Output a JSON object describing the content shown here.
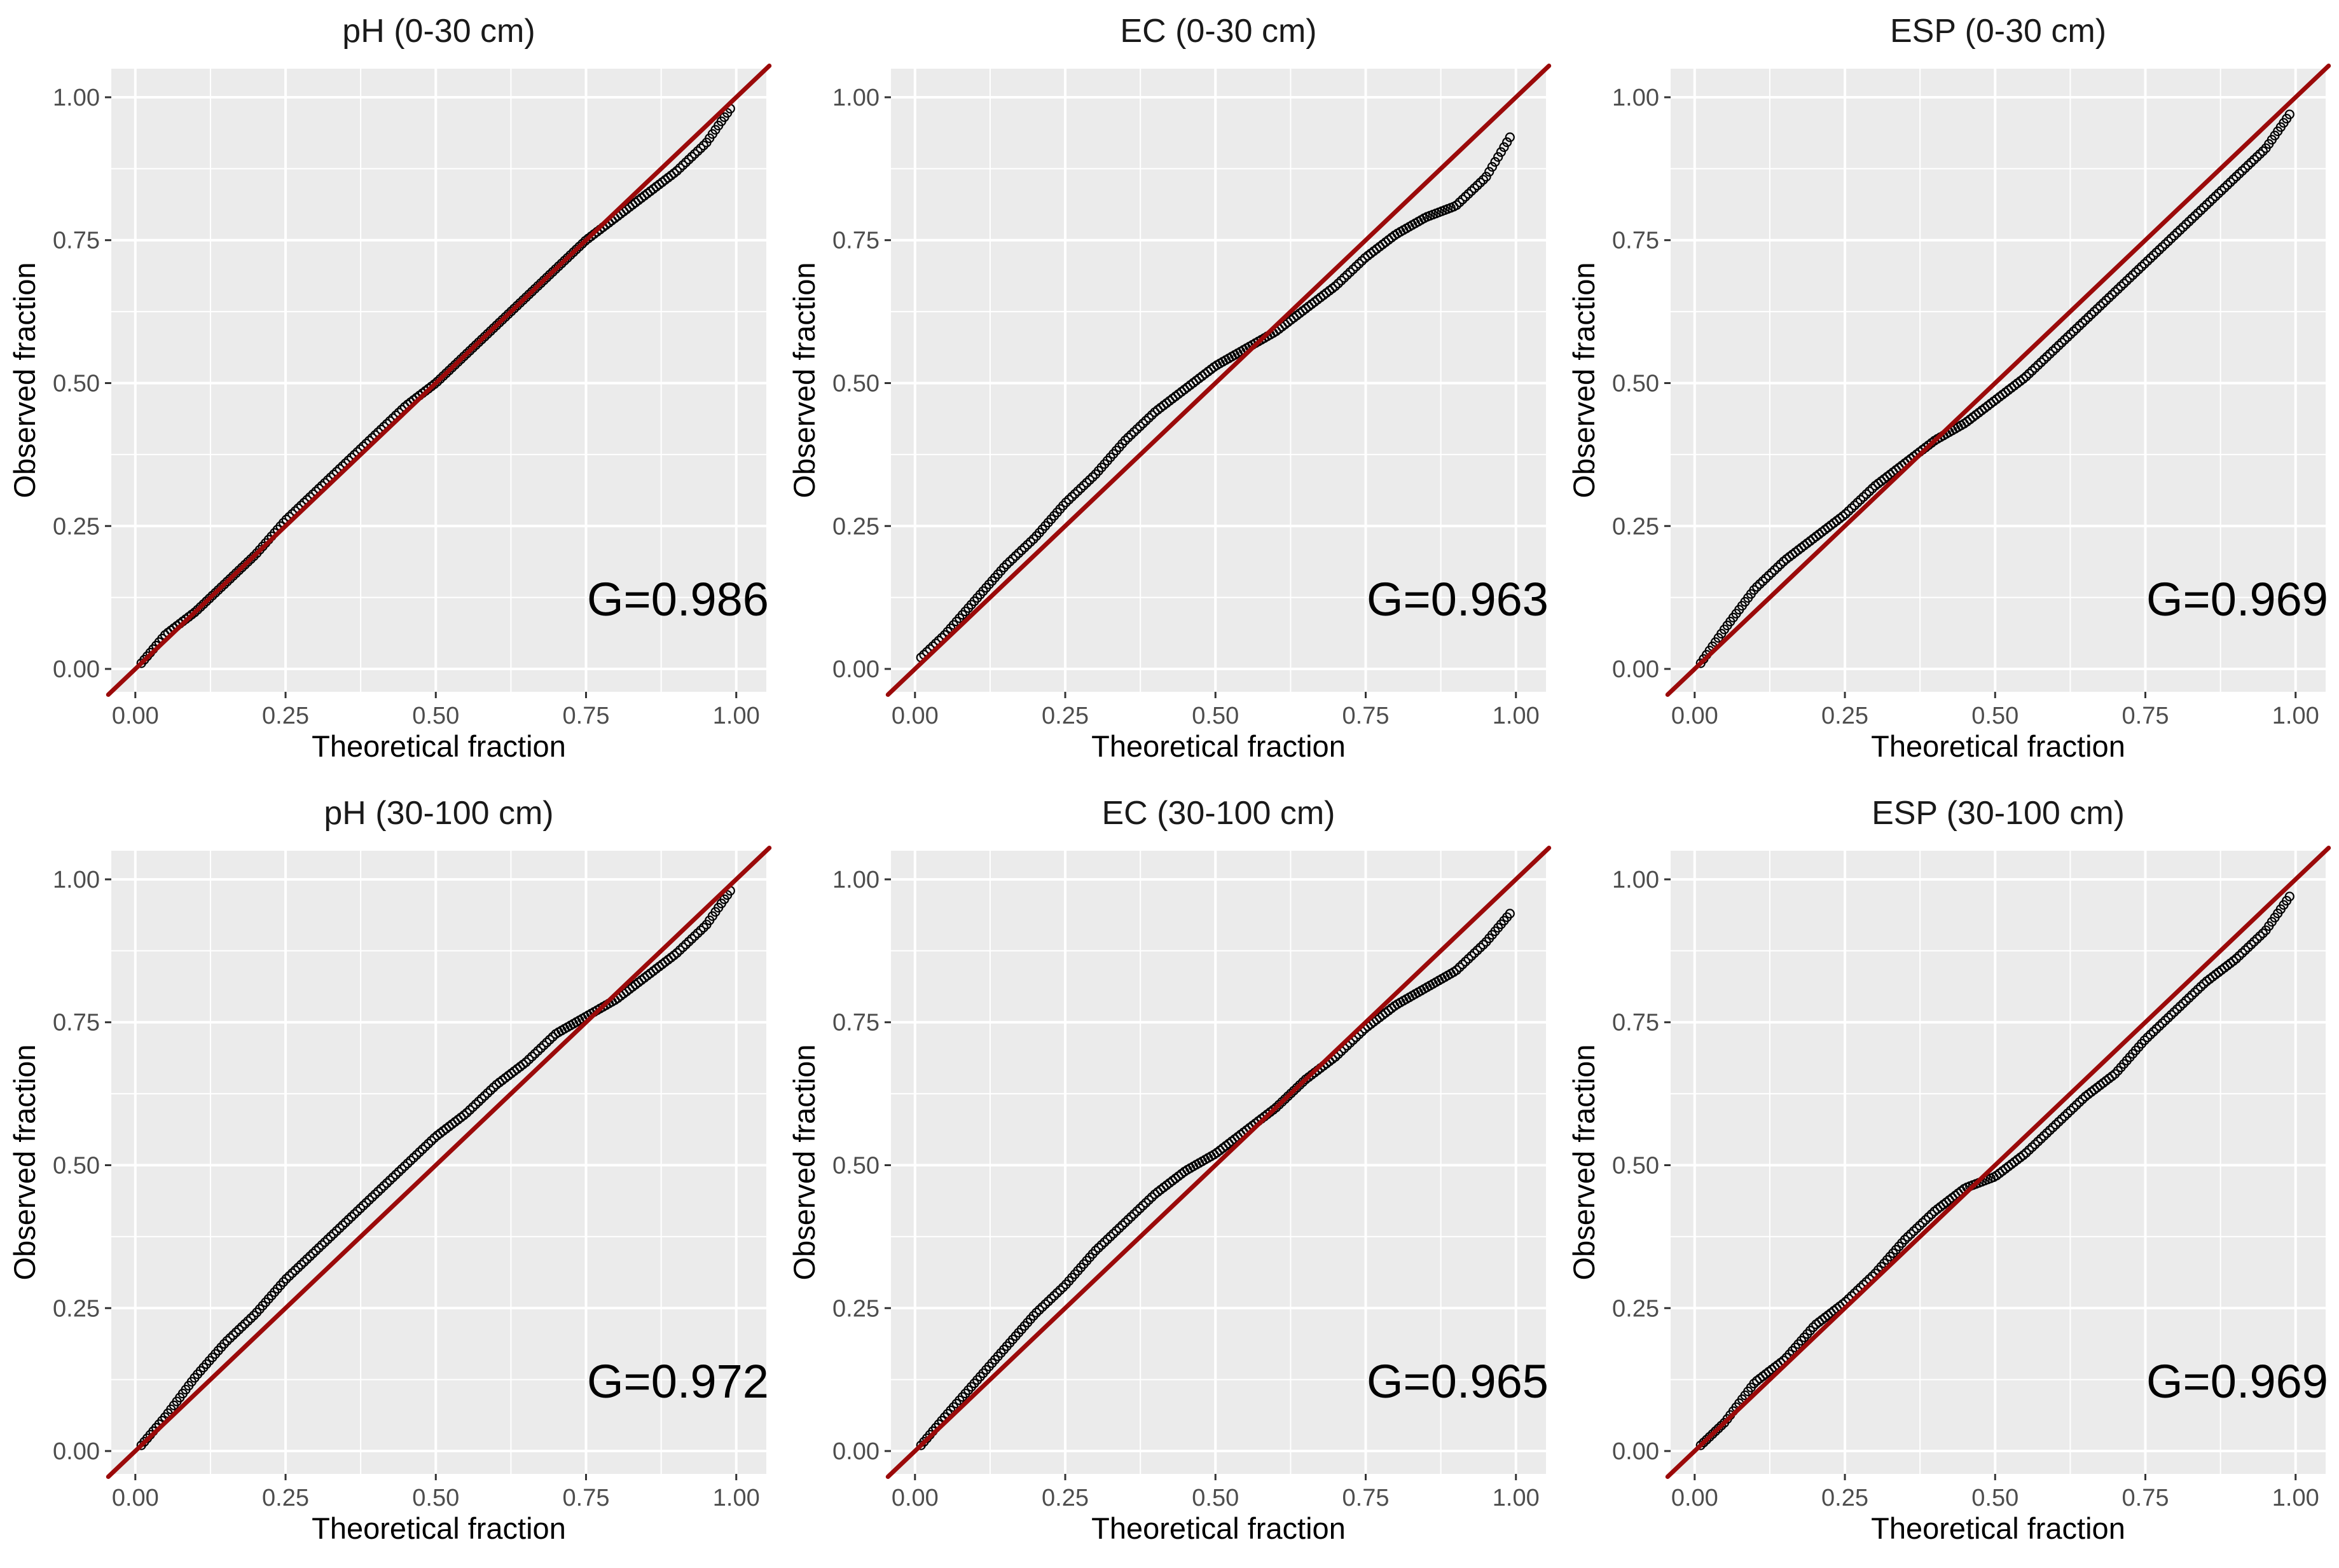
{
  "chart_data": [
    {
      "type": "scatter",
      "title": "pH (0-30 cm)",
      "xlabel": "Theoretical fraction",
      "ylabel": "Observed fraction",
      "xlim": [
        -0.04,
        1.05
      ],
      "ylim": [
        -0.04,
        1.05
      ],
      "xticks": [
        "0.00",
        "0.25",
        "0.50",
        "0.75",
        "1.00"
      ],
      "yticks": [
        "0.00",
        "0.25",
        "0.50",
        "0.75",
        "1.00"
      ],
      "grid": true,
      "annotation": "G=0.986",
      "reference_line": {
        "slope": 1,
        "intercept": 0,
        "color": "#9b0a0a"
      },
      "point_color": "#000000",
      "series": [
        {
          "x": [
            0.01,
            0.05,
            0.1,
            0.15,
            0.2,
            0.25,
            0.3,
            0.35,
            0.4,
            0.45,
            0.5,
            0.55,
            0.6,
            0.65,
            0.7,
            0.75,
            0.8,
            0.85,
            0.9,
            0.95,
            0.99
          ],
          "y": [
            0.01,
            0.06,
            0.1,
            0.15,
            0.2,
            0.26,
            0.31,
            0.36,
            0.41,
            0.46,
            0.5,
            0.55,
            0.6,
            0.65,
            0.7,
            0.75,
            0.79,
            0.83,
            0.87,
            0.92,
            0.98
          ]
        }
      ]
    },
    {
      "type": "scatter",
      "title": "EC (0-30 cm)",
      "xlabel": "Theoretical fraction",
      "ylabel": "Observed fraction",
      "xlim": [
        -0.04,
        1.05
      ],
      "ylim": [
        -0.04,
        1.05
      ],
      "xticks": [
        "0.00",
        "0.25",
        "0.50",
        "0.75",
        "1.00"
      ],
      "yticks": [
        "0.00",
        "0.25",
        "0.50",
        "0.75",
        "1.00"
      ],
      "grid": true,
      "annotation": "G=0.963",
      "reference_line": {
        "slope": 1,
        "intercept": 0,
        "color": "#9b0a0a"
      },
      "point_color": "#000000",
      "series": [
        {
          "x": [
            0.01,
            0.05,
            0.1,
            0.15,
            0.2,
            0.25,
            0.3,
            0.35,
            0.4,
            0.45,
            0.5,
            0.55,
            0.6,
            0.65,
            0.7,
            0.75,
            0.8,
            0.85,
            0.9,
            0.95,
            0.99
          ],
          "y": [
            0.02,
            0.06,
            0.12,
            0.18,
            0.23,
            0.29,
            0.34,
            0.4,
            0.45,
            0.49,
            0.53,
            0.56,
            0.59,
            0.63,
            0.67,
            0.72,
            0.76,
            0.79,
            0.81,
            0.86,
            0.93
          ]
        }
      ]
    },
    {
      "type": "scatter",
      "title": "ESP (0-30 cm)",
      "xlabel": "Theoretical fraction",
      "ylabel": "Observed fraction",
      "xlim": [
        -0.04,
        1.05
      ],
      "ylim": [
        -0.04,
        1.05
      ],
      "xticks": [
        "0.00",
        "0.25",
        "0.50",
        "0.75",
        "1.00"
      ],
      "yticks": [
        "0.00",
        "0.25",
        "0.50",
        "0.75",
        "1.00"
      ],
      "grid": true,
      "annotation": "G=0.969",
      "reference_line": {
        "slope": 1,
        "intercept": 0,
        "color": "#9b0a0a"
      },
      "point_color": "#000000",
      "series": [
        {
          "x": [
            0.01,
            0.05,
            0.1,
            0.15,
            0.2,
            0.25,
            0.3,
            0.35,
            0.4,
            0.45,
            0.5,
            0.55,
            0.6,
            0.65,
            0.7,
            0.75,
            0.8,
            0.85,
            0.9,
            0.95,
            0.99
          ],
          "y": [
            0.01,
            0.07,
            0.14,
            0.19,
            0.23,
            0.27,
            0.32,
            0.36,
            0.4,
            0.43,
            0.47,
            0.51,
            0.56,
            0.61,
            0.66,
            0.71,
            0.76,
            0.81,
            0.86,
            0.91,
            0.97
          ]
        }
      ]
    },
    {
      "type": "scatter",
      "title": "pH (30-100 cm)",
      "xlabel": "Theoretical fraction",
      "ylabel": "Observed fraction",
      "xlim": [
        -0.04,
        1.05
      ],
      "ylim": [
        -0.04,
        1.05
      ],
      "xticks": [
        "0.00",
        "0.25",
        "0.50",
        "0.75",
        "1.00"
      ],
      "yticks": [
        "0.00",
        "0.25",
        "0.50",
        "0.75",
        "1.00"
      ],
      "grid": true,
      "annotation": "G=0.972",
      "reference_line": {
        "slope": 1,
        "intercept": 0,
        "color": "#9b0a0a"
      },
      "point_color": "#000000",
      "series": [
        {
          "x": [
            0.01,
            0.05,
            0.1,
            0.15,
            0.2,
            0.25,
            0.3,
            0.35,
            0.4,
            0.45,
            0.5,
            0.55,
            0.6,
            0.65,
            0.7,
            0.75,
            0.8,
            0.85,
            0.9,
            0.95,
            0.99
          ],
          "y": [
            0.01,
            0.06,
            0.13,
            0.19,
            0.24,
            0.3,
            0.35,
            0.4,
            0.45,
            0.5,
            0.55,
            0.59,
            0.64,
            0.68,
            0.73,
            0.76,
            0.79,
            0.83,
            0.87,
            0.92,
            0.98
          ]
        }
      ]
    },
    {
      "type": "scatter",
      "title": "EC (30-100 cm)",
      "xlabel": "Theoretical fraction",
      "ylabel": "Observed fraction",
      "xlim": [
        -0.04,
        1.05
      ],
      "ylim": [
        -0.04,
        1.05
      ],
      "xticks": [
        "0.00",
        "0.25",
        "0.50",
        "0.75",
        "1.00"
      ],
      "yticks": [
        "0.00",
        "0.25",
        "0.50",
        "0.75",
        "1.00"
      ],
      "grid": true,
      "annotation": "G=0.965",
      "reference_line": {
        "slope": 1,
        "intercept": 0,
        "color": "#9b0a0a"
      },
      "point_color": "#000000",
      "series": [
        {
          "x": [
            0.01,
            0.05,
            0.1,
            0.15,
            0.2,
            0.25,
            0.3,
            0.35,
            0.4,
            0.45,
            0.5,
            0.55,
            0.6,
            0.65,
            0.7,
            0.75,
            0.8,
            0.85,
            0.9,
            0.95,
            0.99
          ],
          "y": [
            0.01,
            0.06,
            0.12,
            0.18,
            0.24,
            0.29,
            0.35,
            0.4,
            0.45,
            0.49,
            0.52,
            0.56,
            0.6,
            0.65,
            0.69,
            0.74,
            0.78,
            0.81,
            0.84,
            0.89,
            0.94
          ]
        }
      ]
    },
    {
      "type": "scatter",
      "title": "ESP (30-100 cm)",
      "xlabel": "Theoretical fraction",
      "ylabel": "Observed fraction",
      "xlim": [
        -0.04,
        1.05
      ],
      "ylim": [
        -0.04,
        1.05
      ],
      "xticks": [
        "0.00",
        "0.25",
        "0.50",
        "0.75",
        "1.00"
      ],
      "yticks": [
        "0.00",
        "0.25",
        "0.50",
        "0.75",
        "1.00"
      ],
      "grid": true,
      "annotation": "G=0.969",
      "reference_line": {
        "slope": 1,
        "intercept": 0,
        "color": "#9b0a0a"
      },
      "point_color": "#000000",
      "series": [
        {
          "x": [
            0.01,
            0.05,
            0.1,
            0.15,
            0.2,
            0.25,
            0.3,
            0.35,
            0.4,
            0.45,
            0.5,
            0.55,
            0.6,
            0.65,
            0.7,
            0.75,
            0.8,
            0.85,
            0.9,
            0.95,
            0.99
          ],
          "y": [
            0.01,
            0.05,
            0.12,
            0.16,
            0.22,
            0.26,
            0.31,
            0.37,
            0.42,
            0.46,
            0.48,
            0.52,
            0.57,
            0.62,
            0.66,
            0.72,
            0.77,
            0.82,
            0.86,
            0.91,
            0.97
          ]
        }
      ]
    }
  ]
}
